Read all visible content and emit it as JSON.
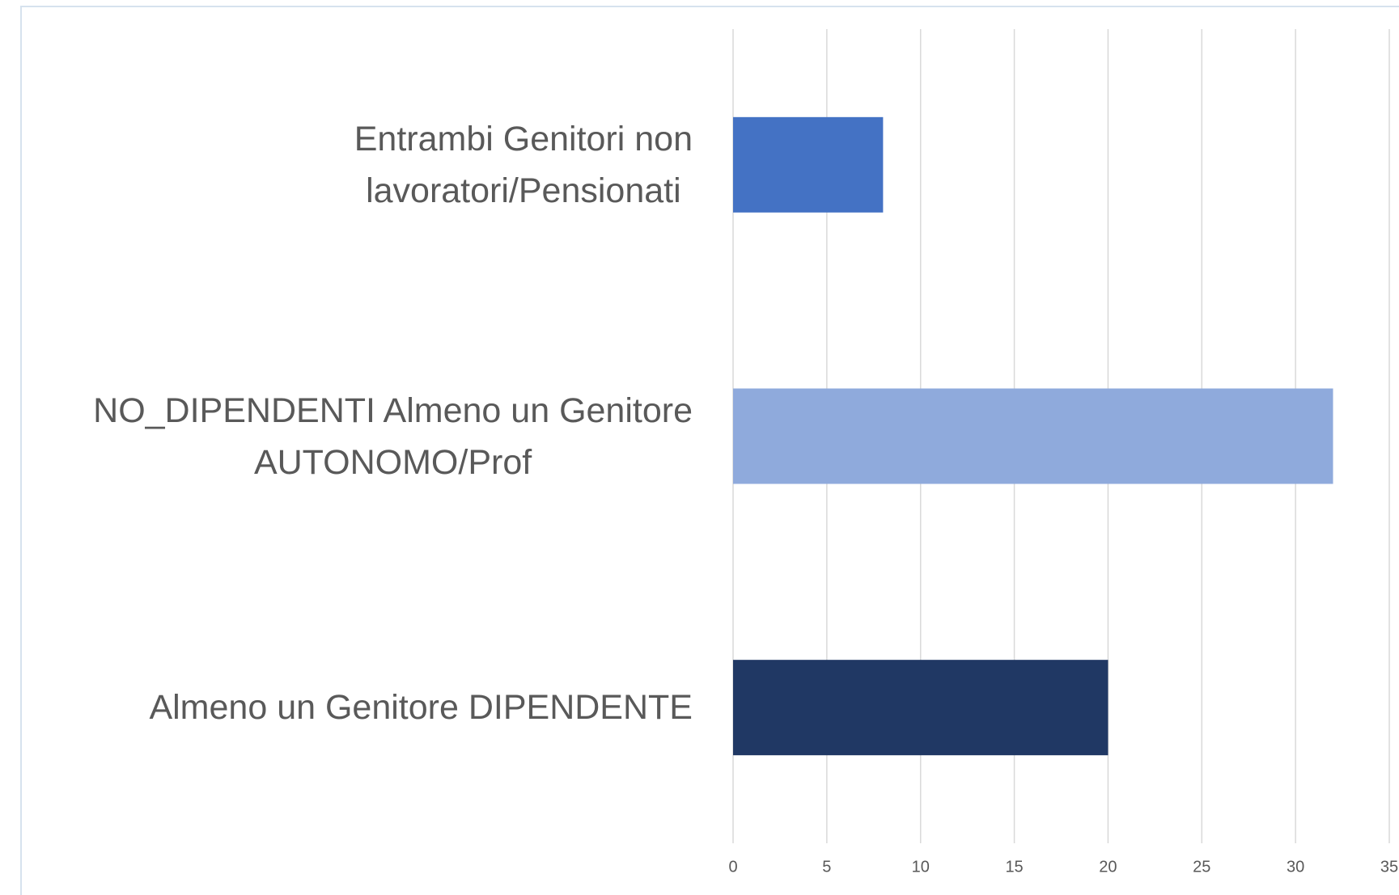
{
  "chart_data": {
    "type": "barh",
    "categories": [
      "Entrambi Genitori non\nlavoratori/Pensionati",
      "NO_DIPENDENTI Almeno un Genitore\nAUTONOMO/Prof",
      "Almeno un Genitore DIPENDENTE"
    ],
    "values": [
      8,
      32,
      20
    ],
    "colors": [
      "#4472c4",
      "#8faadc",
      "#203864"
    ],
    "xlim": [
      0,
      35
    ],
    "xticks": [
      0,
      5,
      10,
      15,
      20,
      25,
      30,
      35
    ],
    "grid": true
  }
}
